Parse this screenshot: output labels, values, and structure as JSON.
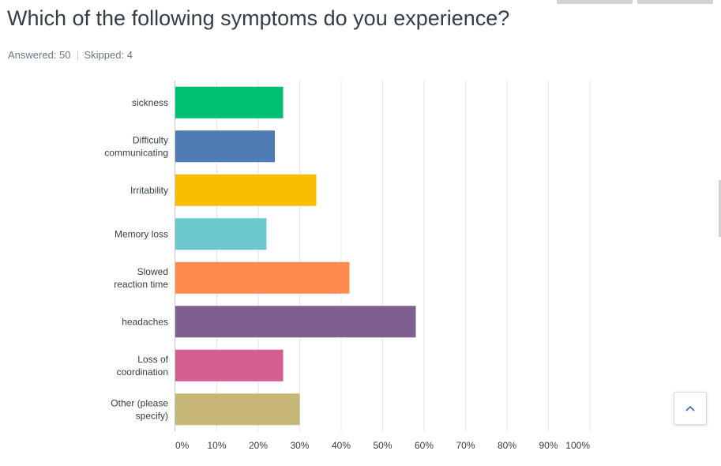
{
  "survey": {
    "question": "Which of the following symptoms do you experience?",
    "answered": "Answered: 50",
    "skipped": "Skipped: 4"
  },
  "chart_data": {
    "type": "bar",
    "orientation": "horizontal",
    "title": "Which of the following symptoms do you experience?",
    "xlabel": "",
    "ylabel": "",
    "xlim": [
      0,
      100
    ],
    "unit": "%",
    "grid": true,
    "categories": [
      [
        "sickness"
      ],
      [
        "Difficulty",
        "communicating"
      ],
      [
        "Irritability"
      ],
      [
        "Memory loss"
      ],
      [
        "Slowed",
        "reaction time"
      ],
      [
        "headaches"
      ],
      [
        "Loss of",
        "coordination"
      ],
      [
        "Other (please",
        "specify)"
      ]
    ],
    "values": [
      26,
      24,
      34,
      22,
      42,
      58,
      26,
      30
    ],
    "colors": [
      "#00bf6f",
      "#507cb6",
      "#f9be00",
      "#6bc8cd",
      "#ff8b4f",
      "#7f5f90",
      "#d25f90",
      "#c7b879"
    ],
    "ticks": [
      "0%",
      "10%",
      "20%",
      "30%",
      "40%",
      "50%",
      "60%",
      "70%",
      "80%",
      "90%",
      "100%"
    ]
  },
  "icons": {
    "scroll_top": "chevron-up-icon"
  }
}
